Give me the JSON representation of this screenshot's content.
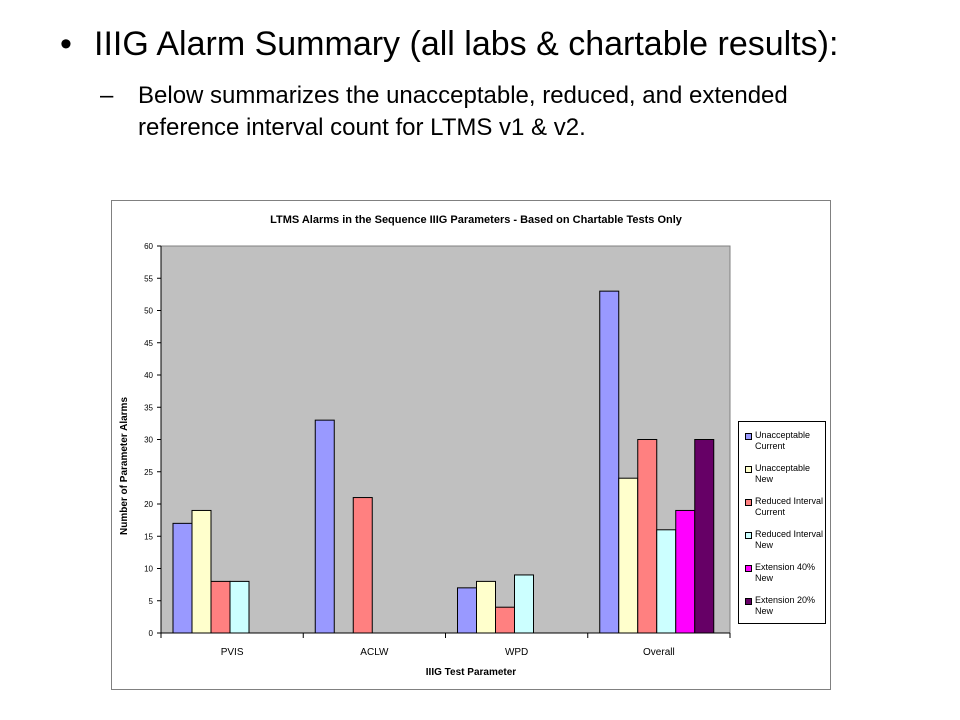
{
  "slide": {
    "bullet_symbol": "•",
    "heading": "IIIG Alarm Summary (all labs & chartable results):",
    "sub_symbol": "–",
    "sub_text": "Below summarizes the unacceptable, reduced, and extended reference interval count for LTMS v1 & v2."
  },
  "chart_data": {
    "type": "bar",
    "title": "LTMS Alarms in the Sequence IIIG Parameters - Based on Chartable Tests Only",
    "xlabel": "IIIG Test Parameter",
    "ylabel": "Number of Parameter Alarms",
    "ylim": [
      0,
      60
    ],
    "yticks": [
      "0",
      "5",
      "10",
      "15",
      "20",
      "25",
      "30",
      "35",
      "40",
      "45",
      "50",
      "55",
      "60"
    ],
    "grid": false,
    "plot_background": "#c0c0c0",
    "legend_position": "right",
    "categories": [
      "PVIS",
      "ACLW",
      "WPD",
      "Overall"
    ],
    "series": [
      {
        "name": "Unacceptable Current",
        "color": "#9999ff",
        "values": [
          17,
          33,
          7,
          53
        ]
      },
      {
        "name": "Unacceptable New",
        "color": "#ffffcc",
        "values": [
          19,
          0,
          8,
          24
        ]
      },
      {
        "name": "Reduced Interval Current",
        "color": "#ff8080",
        "values": [
          8,
          21,
          4,
          30
        ]
      },
      {
        "name": "Reduced Interval New",
        "color": "#ccffff",
        "values": [
          8,
          0,
          9,
          16
        ]
      },
      {
        "name": "Extension 40% New",
        "color": "#ff00ff",
        "values": [
          0,
          0,
          0,
          19
        ]
      },
      {
        "name": "Extension 20% New",
        "color": "#660066",
        "values": [
          0,
          0,
          0,
          30
        ]
      }
    ]
  }
}
